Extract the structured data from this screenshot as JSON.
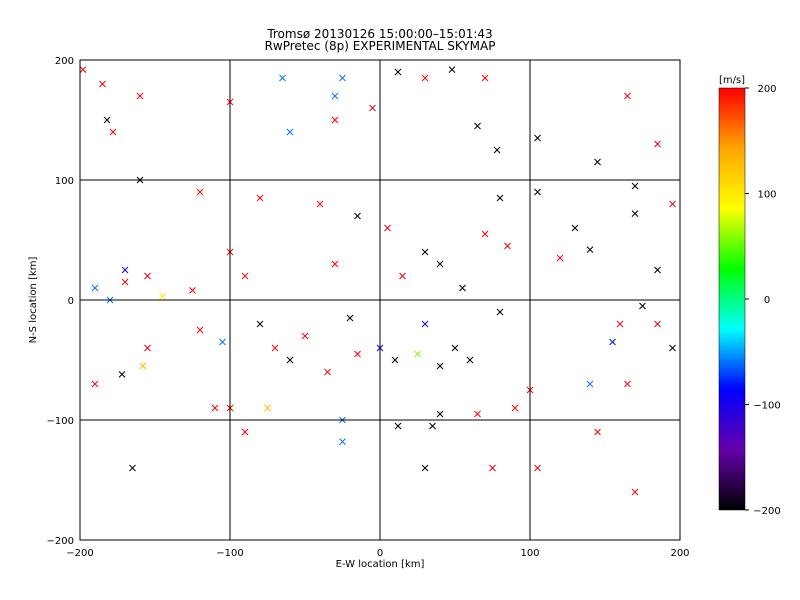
{
  "chart_data": {
    "type": "scatter",
    "title": "Tromsø 20130126 15:00:00–15:01:43",
    "subtitle": "RwPretec (8p) EXPERIMENTAL SKYMAP",
    "xlabel": "E-W location [km]",
    "ylabel": "N-S location [km]",
    "xlim": [
      -200,
      200
    ],
    "ylim": [
      -200,
      200
    ],
    "x_ticks": [
      "−200",
      "−100",
      "0",
      "100",
      "200"
    ],
    "y_ticks": [
      "−200",
      "−100",
      "0",
      "100",
      "200"
    ],
    "x_tick_values": [
      -200,
      -100,
      0,
      100,
      200
    ],
    "y_tick_values": [
      -200,
      -100,
      0,
      100,
      200
    ],
    "grid": true,
    "colorbar": {
      "label": "[m/s]",
      "range": [
        -200,
        200
      ],
      "ticks": [
        "200",
        "100",
        "0",
        "−100",
        "−200"
      ],
      "tick_values": [
        200,
        100,
        0,
        -100,
        -200
      ],
      "colormap": [
        "#000000",
        "#6600aa",
        "#0000ff",
        "#00ffff",
        "#00ff00",
        "#ffff00",
        "#ffa500",
        "#ff0000"
      ]
    },
    "marker_types": [
      "x",
      "dot"
    ],
    "points": [
      {
        "x": -198,
        "y": 192,
        "v": 200,
        "m": "x"
      },
      {
        "x": -185,
        "y": 180,
        "v": 200,
        "m": "x"
      },
      {
        "x": -182,
        "y": 150,
        "v": -200,
        "m": "x"
      },
      {
        "x": -178,
        "y": 140,
        "v": 200,
        "m": "x"
      },
      {
        "x": -160,
        "y": 170,
        "v": 200,
        "m": "x"
      },
      {
        "x": -100,
        "y": 165,
        "v": 200,
        "m": "x"
      },
      {
        "x": -65,
        "y": 185,
        "v": -60,
        "m": "x"
      },
      {
        "x": -25,
        "y": 185,
        "v": -60,
        "m": "x"
      },
      {
        "x": -30,
        "y": 170,
        "v": -60,
        "m": "x"
      },
      {
        "x": -30,
        "y": 150,
        "v": 200,
        "m": "x"
      },
      {
        "x": 12,
        "y": 190,
        "v": -200,
        "m": "x"
      },
      {
        "x": 30,
        "y": 185,
        "v": 200,
        "m": "x"
      },
      {
        "x": 48,
        "y": 192,
        "v": -200,
        "m": "x"
      },
      {
        "x": 70,
        "y": 185,
        "v": 200,
        "m": "x"
      },
      {
        "x": 65,
        "y": 145,
        "v": -200,
        "m": "x"
      },
      {
        "x": 78,
        "y": 125,
        "v": -200,
        "m": "x"
      },
      {
        "x": 105,
        "y": 135,
        "v": -200,
        "m": "x"
      },
      {
        "x": 145,
        "y": 115,
        "v": -200,
        "m": "x"
      },
      {
        "x": 165,
        "y": 170,
        "v": 200,
        "m": "x"
      },
      {
        "x": 185,
        "y": 130,
        "v": 200,
        "m": "x"
      },
      {
        "x": 170,
        "y": 95,
        "v": -200,
        "m": "x"
      },
      {
        "x": 195,
        "y": 80,
        "v": 200,
        "m": "x"
      },
      {
        "x": -160,
        "y": 100,
        "v": -200,
        "m": "x"
      },
      {
        "x": -120,
        "y": 90,
        "v": 200,
        "m": "x"
      },
      {
        "x": -80,
        "y": 85,
        "v": 200,
        "m": "x"
      },
      {
        "x": -40,
        "y": 80,
        "v": 200,
        "m": "x"
      },
      {
        "x": -60,
        "y": 140,
        "v": -60,
        "m": "x"
      },
      {
        "x": -5,
        "y": 160,
        "v": 200,
        "m": "x"
      },
      {
        "x": 80,
        "y": 85,
        "v": -200,
        "m": "x"
      },
      {
        "x": 105,
        "y": 90,
        "v": -200,
        "m": "x"
      },
      {
        "x": 130,
        "y": 60,
        "v": -200,
        "m": "x"
      },
      {
        "x": 170,
        "y": 72,
        "v": -200,
        "m": "x"
      },
      {
        "x": -170,
        "y": 25,
        "v": -100,
        "m": "x"
      },
      {
        "x": -170,
        "y": 15,
        "v": 200,
        "m": "x"
      },
      {
        "x": -190,
        "y": 10,
        "v": -60,
        "m": "x"
      },
      {
        "x": -180,
        "y": 0,
        "v": -60,
        "m": "x"
      },
      {
        "x": -155,
        "y": 20,
        "v": 200,
        "m": "x"
      },
      {
        "x": -145,
        "y": 3,
        "v": 100,
        "m": "x"
      },
      {
        "x": -125,
        "y": 8,
        "v": 200,
        "m": "x"
      },
      {
        "x": -100,
        "y": 40,
        "v": 200,
        "m": "x"
      },
      {
        "x": -90,
        "y": 20,
        "v": 200,
        "m": "x"
      },
      {
        "x": 120,
        "y": 35,
        "v": 200,
        "m": "x"
      },
      {
        "x": 140,
        "y": 42,
        "v": -200,
        "m": "x"
      },
      {
        "x": 185,
        "y": 25,
        "v": -200,
        "m": "x"
      },
      {
        "x": 175,
        "y": -5,
        "v": -200,
        "m": "x"
      },
      {
        "x": 185,
        "y": -20,
        "v": 200,
        "m": "x"
      },
      {
        "x": 160,
        "y": -20,
        "v": 200,
        "m": "x"
      },
      {
        "x": 195,
        "y": -40,
        "v": -200,
        "m": "x"
      },
      {
        "x": 155,
        "y": -35,
        "v": -80,
        "m": "x"
      },
      {
        "x": -155,
        "y": -40,
        "v": 200,
        "m": "x"
      },
      {
        "x": -120,
        "y": -25,
        "v": 200,
        "m": "x"
      },
      {
        "x": -105,
        "y": -35,
        "v": -60,
        "m": "x"
      },
      {
        "x": -190,
        "y": -70,
        "v": 200,
        "m": "x"
      },
      {
        "x": -172,
        "y": -62,
        "v": -200,
        "m": "x"
      },
      {
        "x": -158,
        "y": -55,
        "v": 130,
        "m": "x"
      },
      {
        "x": -110,
        "y": -90,
        "v": 200,
        "m": "x"
      },
      {
        "x": -100,
        "y": -90,
        "v": 200,
        "m": "x"
      },
      {
        "x": -90,
        "y": -110,
        "v": 200,
        "m": "x"
      },
      {
        "x": -75,
        "y": -90,
        "v": 130,
        "m": "x"
      },
      {
        "x": -25,
        "y": -100,
        "v": -60,
        "m": "x"
      },
      {
        "x": -25,
        "y": -118,
        "v": -60,
        "m": "x"
      },
      {
        "x": 12,
        "y": -105,
        "v": -200,
        "m": "x"
      },
      {
        "x": 35,
        "y": -105,
        "v": -200,
        "m": "x"
      },
      {
        "x": 40,
        "y": -95,
        "v": -200,
        "m": "x"
      },
      {
        "x": 65,
        "y": -95,
        "v": 200,
        "m": "x"
      },
      {
        "x": 90,
        "y": -90,
        "v": 200,
        "m": "x"
      },
      {
        "x": 100,
        "y": -75,
        "v": 200,
        "m": "x"
      },
      {
        "x": 140,
        "y": -70,
        "v": -60,
        "m": "x"
      },
      {
        "x": 165,
        "y": -70,
        "v": 200,
        "m": "x"
      },
      {
        "x": 145,
        "y": -110,
        "v": 200,
        "m": "x"
      },
      {
        "x": 30,
        "y": -140,
        "v": -200,
        "m": "x"
      },
      {
        "x": 75,
        "y": -140,
        "v": 200,
        "m": "x"
      },
      {
        "x": 105,
        "y": -140,
        "v": 200,
        "m": "x"
      },
      {
        "x": 170,
        "y": -160,
        "v": 200,
        "m": "x"
      },
      {
        "x": -165,
        "y": -140,
        "v": -200,
        "m": "x"
      },
      {
        "x": -15,
        "y": -45,
        "v": 200,
        "m": "x"
      },
      {
        "x": 0,
        "y": -40,
        "v": -100,
        "m": "x"
      },
      {
        "x": 10,
        "y": -50,
        "v": -200,
        "m": "x"
      },
      {
        "x": 25,
        "y": -45,
        "v": 60,
        "m": "x"
      },
      {
        "x": 40,
        "y": -55,
        "v": -200,
        "m": "x"
      },
      {
        "x": 50,
        "y": -40,
        "v": -200,
        "m": "x"
      },
      {
        "x": 60,
        "y": -50,
        "v": -200,
        "m": "x"
      },
      {
        "x": -50,
        "y": -30,
        "v": 200,
        "m": "x"
      },
      {
        "x": -60,
        "y": -50,
        "v": -200,
        "m": "x"
      },
      {
        "x": -35,
        "y": -60,
        "v": 200,
        "m": "x"
      },
      {
        "x": -80,
        "y": -20,
        "v": -200,
        "m": "x"
      },
      {
        "x": -70,
        "y": -40,
        "v": 200,
        "m": "x"
      },
      {
        "x": 5,
        "y": 60,
        "v": 200,
        "m": "x"
      },
      {
        "x": -15,
        "y": 70,
        "v": -200,
        "m": "x"
      },
      {
        "x": 30,
        "y": 40,
        "v": -200,
        "m": "x"
      },
      {
        "x": 40,
        "y": 30,
        "v": -200,
        "m": "x"
      },
      {
        "x": 70,
        "y": 55,
        "v": 200,
        "m": "x"
      },
      {
        "x": 85,
        "y": 45,
        "v": 200,
        "m": "x"
      },
      {
        "x": -30,
        "y": 30,
        "v": 200,
        "m": "x"
      },
      {
        "x": 15,
        "y": 20,
        "v": 200,
        "m": "x"
      },
      {
        "x": 55,
        "y": 10,
        "v": -200,
        "m": "x"
      },
      {
        "x": 80,
        "y": -10,
        "v": -200,
        "m": "x"
      },
      {
        "x": 30,
        "y": -20,
        "v": -100,
        "m": "x"
      },
      {
        "x": -20,
        "y": -15,
        "v": -200,
        "m": "x"
      }
    ]
  }
}
